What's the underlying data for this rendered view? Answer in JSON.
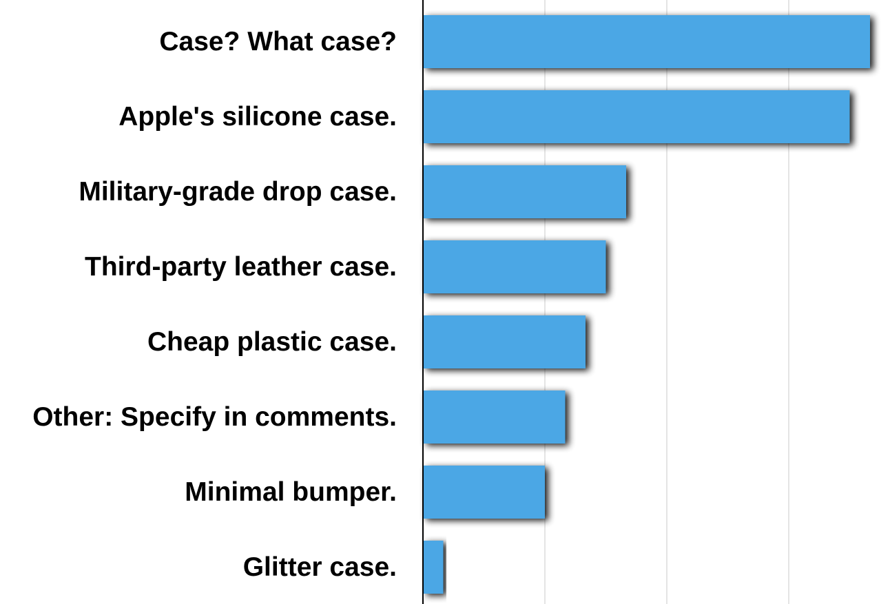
{
  "chart_data": {
    "type": "bar",
    "orientation": "horizontal",
    "categories": [
      "Case? What case?",
      "Apple's silicone case.",
      "Military-grade drop case.",
      "Third-party leather case.",
      "Cheap plastic case.",
      "Other: Specify in comments.",
      "Minimal bumper.",
      "Glitter case."
    ],
    "values": [
      22,
      21,
      10,
      9,
      8,
      7,
      6,
      1
    ],
    "xlim": [
      0,
      22
    ],
    "x_gridlines": [
      6,
      12,
      18
    ],
    "grid": true,
    "legend": "none",
    "bar_color": "#4ba7e5",
    "gridline_color": "#c8c8c8",
    "axis_color": "#000000",
    "title": "",
    "xlabel": "",
    "ylabel": ""
  }
}
